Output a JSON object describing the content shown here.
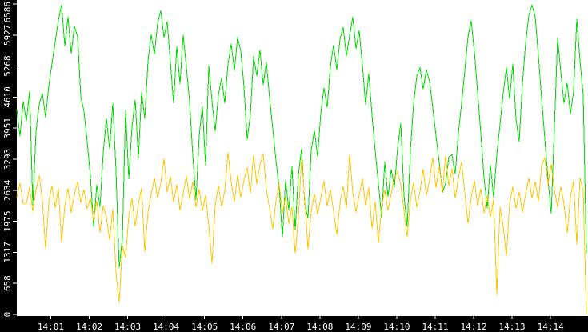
{
  "window": {
    "background_color": "#ffffff",
    "axis_band_color": "#000000",
    "axis_text_color": "#ffffff",
    "tick_color": "#ffffff"
  },
  "chart_data": {
    "type": "line",
    "title": "",
    "xlabel": "",
    "ylabel": "",
    "grid": false,
    "legend_position": "none",
    "x_axis": {
      "labels": [
        "14:01",
        "14:02",
        "14:03",
        "14:04",
        "14:05",
        "14:06",
        "14:07",
        "14:08",
        "14:09",
        "14:10",
        "14:11",
        "14:12",
        "14:13",
        "14:14"
      ],
      "first_tick_frac": 0.0595,
      "tick_step_frac": 0.0673,
      "time_range_shown": [
        "14:00",
        "14:15"
      ]
    },
    "y_axis": {
      "ticks": [
        0,
        658,
        1317,
        1975,
        2634,
        3293,
        3951,
        4610,
        5268,
        5927,
        6586
      ],
      "min": 0,
      "max": 6586
    },
    "series": [
      {
        "name": "green",
        "color": "#00dd00",
        "values": [
          4350,
          3780,
          4520,
          4100,
          4740,
          2320,
          3880,
          4460,
          4690,
          4180,
          4850,
          5320,
          5780,
          6240,
          6570,
          5690,
          6310,
          5530,
          6120,
          5890,
          4620,
          4310,
          3660,
          2940,
          1860,
          2750,
          2280,
          3420,
          4160,
          3510,
          4480,
          3050,
          990,
          1620,
          4340,
          2870,
          3980,
          4560,
          3320,
          4720,
          4150,
          5380,
          5940,
          5520,
          6180,
          6450,
          5870,
          6220,
          5350,
          4480,
          5690,
          4890,
          5930,
          5240,
          4510,
          3370,
          2430,
          3780,
          4420,
          3160,
          5280,
          4530,
          3890,
          4660,
          5020,
          4480,
          5310,
          5740,
          5170,
          5880,
          5590,
          4830,
          3710,
          4240,
          5480,
          5060,
          5620,
          4870,
          5350,
          4590,
          3940,
          3260,
          2690,
          1640,
          2850,
          2210,
          3140,
          1780,
          2960,
          3520,
          2340,
          2040,
          3480,
          3910,
          3350,
          4270,
          4810,
          4390,
          5260,
          5720,
          5190,
          5840,
          6090,
          5480,
          5910,
          6310,
          5640,
          6020,
          5290,
          4450,
          5110,
          4230,
          3470,
          2780,
          2060,
          3240,
          2490,
          3080,
          2700,
          3530,
          4060,
          2520,
          1860,
          3480,
          4470,
          5060,
          5230,
          4780,
          5190,
          4940,
          4380,
          3790,
          3230,
          2580,
          2780,
          3340,
          3390,
          2980,
          3850,
          4480,
          5170,
          5890,
          6230,
          5560,
          4720,
          3840,
          2910,
          2250,
          3170,
          2480,
          3390,
          4030,
          4690,
          5240,
          4570,
          5320,
          4140,
          3660,
          4890,
          5750,
          6340,
          6560,
          6320,
          5480,
          4590,
          3730,
          2870,
          2140,
          3960,
          5870,
          5140,
          4480,
          4910,
          4250,
          4730,
          6270,
          5390,
          4660,
          1300
        ]
      },
      {
        "name": "yellow",
        "color": "#ffc800",
        "values": [
          2480,
          2790,
          2350,
          2340,
          2710,
          2180,
          2640,
          2950,
          2420,
          1380,
          2380,
          2730,
          2260,
          2690,
          1520,
          2310,
          2680,
          2160,
          2540,
          2820,
          2370,
          2650,
          2230,
          2480,
          1980,
          2420,
          1730,
          2310,
          2060,
          1580,
          2240,
          900,
          250,
          1460,
          1210,
          2090,
          2460,
          1870,
          2350,
          2680,
          1320,
          2170,
          2540,
          2900,
          2470,
          2780,
          3310,
          2590,
          2930,
          2380,
          2760,
          2210,
          2570,
          2940,
          2450,
          2820,
          2280,
          2660,
          2190,
          2530,
          1890,
          1080,
          2310,
          2740,
          2290,
          2630,
          3440,
          2810,
          2390,
          2960,
          2480,
          2850,
          3120,
          2570,
          3390,
          2760,
          3180,
          3420,
          2650,
          2240,
          1810,
          2420,
          2780,
          2160,
          2490,
          1920,
          2280,
          1290,
          2070,
          3310,
          2440,
          1380,
          2190,
          2560,
          2120,
          2470,
          2830,
          2290,
          2650,
          2180,
          1690,
          2360,
          2720,
          2250,
          3400,
          2590,
          2170,
          2530,
          2880,
          2310,
          2690,
          1820,
          2400,
          1510,
          2280,
          2640,
          2200,
          2560,
          2910,
          3020,
          2750,
          2190,
          1640,
          2430,
          2800,
          2270,
          2610,
          3090,
          2520,
          2860,
          3330,
          2680,
          3140,
          2590,
          3380,
          2730,
          3100,
          2460,
          2890,
          3240,
          2570,
          1930,
          2480,
          2840,
          2300,
          2670,
          2150,
          2520,
          2060,
          2440,
          410,
          2280,
          1870,
          1230,
          2350,
          2710,
          2240,
          2600,
          2170,
          2540,
          2900,
          2460,
          2820,
          2390,
          3160,
          3330,
          2760,
          3190,
          2640,
          2280,
          2710,
          2350,
          1720,
          2490,
          2830,
          1480,
          2900,
          2620,
          20
        ]
      }
    ]
  }
}
